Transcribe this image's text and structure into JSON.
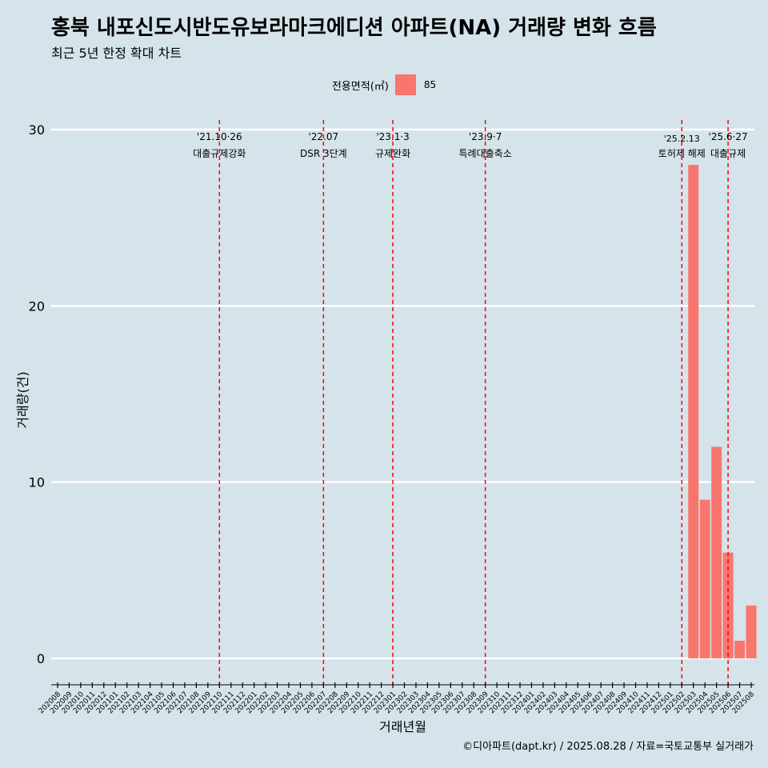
{
  "title": "홍북 내포신도시반도유보라마크에디션 아파트(NA) 거래량 변화 흐름",
  "subtitle": "최근 5년 한정 확대 차트",
  "legend": {
    "title": "전용면적(㎡)",
    "items": [
      {
        "label": "85",
        "color": "#f8766d"
      }
    ]
  },
  "footer": "©디아파트(dapt.kr) / 2025.08.28 / 자료=국토교통부 실거래가",
  "chart_data": {
    "type": "bar",
    "title": "홍북 내포신도시반도유보라마크에디션 아파트(NA) 거래량 변화 흐름",
    "subtitle": "최근 5년 한정 확대 차트",
    "xlabel": "거래년월",
    "ylabel": "거래량(건)",
    "ylim": [
      -1.5,
      31
    ],
    "yticks": [
      0,
      10,
      20,
      30
    ],
    "grid": true,
    "legend_position": "top",
    "categories": [
      "202008",
      "202009",
      "202010",
      "202011",
      "202012",
      "202101",
      "202102",
      "202103",
      "202104",
      "202105",
      "202106",
      "202107",
      "202108",
      "202109",
      "202110",
      "202111",
      "202112",
      "202201",
      "202202",
      "202203",
      "202204",
      "202205",
      "202206",
      "202207",
      "202208",
      "202209",
      "202210",
      "202211",
      "202212",
      "202301",
      "202302",
      "202303",
      "202304",
      "202305",
      "202306",
      "202307",
      "202308",
      "202309",
      "202310",
      "202311",
      "202312",
      "202401",
      "202402",
      "202403",
      "202404",
      "202405",
      "202406",
      "202407",
      "202408",
      "202409",
      "202410",
      "202411",
      "202412",
      "202501",
      "202502",
      "202503",
      "202504",
      "202505",
      "202506",
      "202507",
      "202508"
    ],
    "series": [
      {
        "name": "85",
        "color": "#f8766d",
        "values": [
          0,
          0,
          0,
          0,
          0,
          0,
          0,
          0,
          0,
          0,
          0,
          0,
          0,
          0,
          0,
          0,
          0,
          0,
          0,
          0,
          0,
          0,
          0,
          0,
          0,
          0,
          0,
          0,
          0,
          0,
          0,
          0,
          0,
          0,
          0,
          0,
          0,
          0,
          0,
          0,
          0,
          0,
          0,
          0,
          0,
          0,
          0,
          0,
          0,
          0,
          0,
          0,
          0,
          0,
          0,
          28,
          9,
          12,
          6,
          1,
          3
        ]
      }
    ],
    "annotations": [
      {
        "date_label": "'21.10·26",
        "text": "대출규제강화",
        "x": "202110"
      },
      {
        "date_label": "'22.07",
        "text": "DSR 3단계",
        "x": "202207"
      },
      {
        "date_label": "'23.1·3",
        "text": "규제완화",
        "x": "202301"
      },
      {
        "date_label": "'23.9·7",
        "text": "특례대출축소",
        "x": "202309"
      },
      {
        "date_label": "'25.2.13",
        "text": "토허제 해제",
        "x": "202502"
      },
      {
        "date_label": "'25.6·27",
        "text": "대출규제",
        "x": "202506"
      }
    ]
  }
}
